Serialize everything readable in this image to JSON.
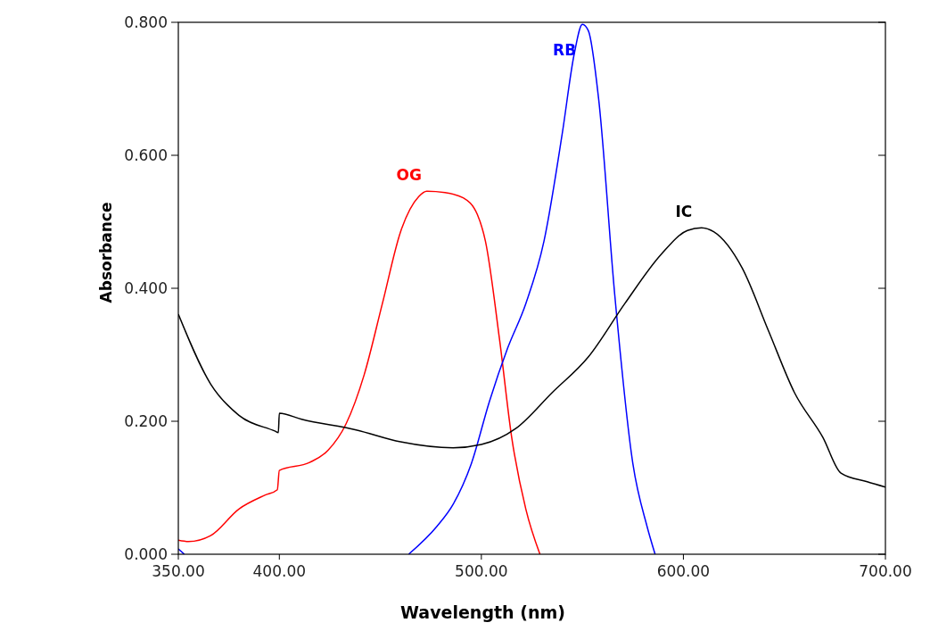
{
  "chart_data": {
    "type": "line",
    "xlabel": "Wavelength (nm)",
    "ylabel": "Absorbance",
    "xlim": [
      350,
      700
    ],
    "ylim": [
      0,
      0.8
    ],
    "xticks": [
      {
        "value": 350,
        "label": "350.00"
      },
      {
        "value": 400,
        "label": "400.00"
      },
      {
        "value": 500,
        "label": "500.00"
      },
      {
        "value": 600,
        "label": "600.00"
      },
      {
        "value": 700,
        "label": "700.00"
      }
    ],
    "yticks": [
      {
        "value": 0,
        "label": "0.000"
      },
      {
        "value": 0.2,
        "label": "0.200"
      },
      {
        "value": 0.4,
        "label": "0.400"
      },
      {
        "value": 0.6,
        "label": "0.600"
      },
      {
        "value": 0.8,
        "label": "0.800"
      }
    ],
    "grid": false,
    "series": [
      {
        "name": "OG",
        "color": "#ff0000",
        "x": [
          350,
          355,
          366,
          380,
          393,
          399,
          400,
          415,
          424,
          433,
          442,
          451,
          460,
          469,
          473,
          482,
          491,
          498,
          502,
          509,
          515,
          522,
          529
        ],
        "values": [
          0.021,
          0.019,
          0.028,
          0.068,
          0.089,
          0.097,
          0.126,
          0.138,
          0.156,
          0.196,
          0.27,
          0.377,
          0.485,
          0.538,
          0.546,
          0.544,
          0.536,
          0.511,
          0.471,
          0.323,
          0.176,
          0.068,
          0
        ]
      },
      {
        "name": "RB",
        "color": "#0000ff",
        "x": [
          350,
          353,
          400,
          464,
          478,
          486,
          495,
          504,
          513,
          522,
          531,
          540,
          546,
          550,
          553,
          558,
          566,
          575,
          582,
          586
        ],
        "values": [
          0.008,
          0,
          null,
          0,
          0.042,
          0.075,
          0.136,
          0.23,
          0.31,
          0.377,
          0.471,
          0.632,
          0.753,
          0.797,
          0.787,
          0.686,
          0.391,
          0.136,
          0.042,
          0
        ]
      },
      {
        "name": "IC",
        "color": "#000000",
        "x": [
          350,
          366,
          380,
          398,
          399.5,
          400,
          411,
          438,
          460,
          486,
          500,
          517,
          535,
          553,
          571,
          589,
          602,
          609,
          615,
          629,
          642,
          655,
          669,
          678,
          691,
          700
        ],
        "values": [
          0.361,
          0.256,
          0.209,
          0.185,
          0.183,
          0.212,
          0.203,
          0.187,
          0.169,
          0.16,
          0.165,
          0.189,
          0.243,
          0.297,
          0.377,
          0.451,
          0.487,
          0.491,
          0.485,
          0.431,
          0.337,
          0.243,
          0.176,
          0.122,
          0.109,
          0.101
        ]
      }
    ]
  }
}
